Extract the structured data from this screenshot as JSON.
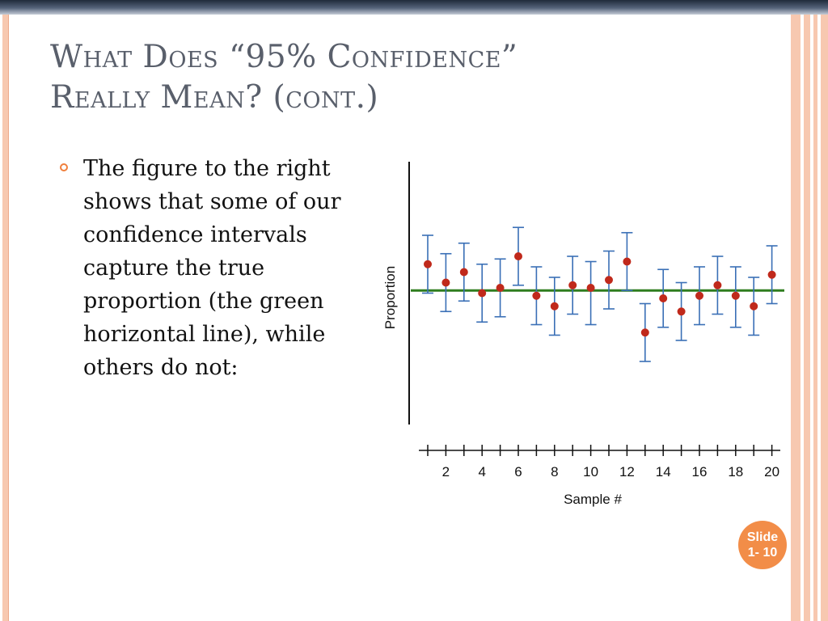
{
  "slide": {
    "title_line1": "What Does “95% Confidence”",
    "title_line2": "Really Mean? (cont.)",
    "bullet": "The figure to the right shows that some of our confidence intervals capture the true proportion (the green horizontal line), while others do not:",
    "badge_line1": "Slide",
    "badge_line2": "1- 10"
  },
  "colors": {
    "accent": "#f07f3c",
    "interval": "#3a6fb6",
    "point": "#c0291b",
    "true_line": "#2e7d1e"
  },
  "chart_data": {
    "type": "scatter",
    "xlabel": "Sample #",
    "ylabel": "Proportion",
    "x_ticks_labeled": [
      "2",
      "4",
      "6",
      "8",
      "10",
      "12",
      "14",
      "16",
      "18",
      "20"
    ],
    "x": [
      1,
      2,
      3,
      4,
      5,
      6,
      7,
      8,
      9,
      10,
      11,
      12,
      13,
      14,
      15,
      16,
      17,
      18,
      19,
      20
    ],
    "ylim": [
      0,
      1
    ],
    "true_value": 0.51,
    "series": [
      {
        "estimates": [
          0.61,
          0.54,
          0.58,
          0.5,
          0.52,
          0.64,
          0.49,
          0.45,
          0.53,
          0.52,
          0.55,
          0.62,
          0.35,
          0.48,
          0.43,
          0.49,
          0.53,
          0.49,
          0.45,
          0.57
        ],
        "lower": [
          0.5,
          0.43,
          0.47,
          0.39,
          0.41,
          0.53,
          0.38,
          0.34,
          0.42,
          0.38,
          0.44,
          0.51,
          0.24,
          0.37,
          0.32,
          0.38,
          0.42,
          0.37,
          0.34,
          0.46
        ],
        "upper": [
          0.72,
          0.65,
          0.69,
          0.61,
          0.63,
          0.75,
          0.6,
          0.56,
          0.64,
          0.62,
          0.66,
          0.73,
          0.46,
          0.59,
          0.54,
          0.6,
          0.64,
          0.6,
          0.56,
          0.68
        ]
      }
    ],
    "grid": false
  }
}
